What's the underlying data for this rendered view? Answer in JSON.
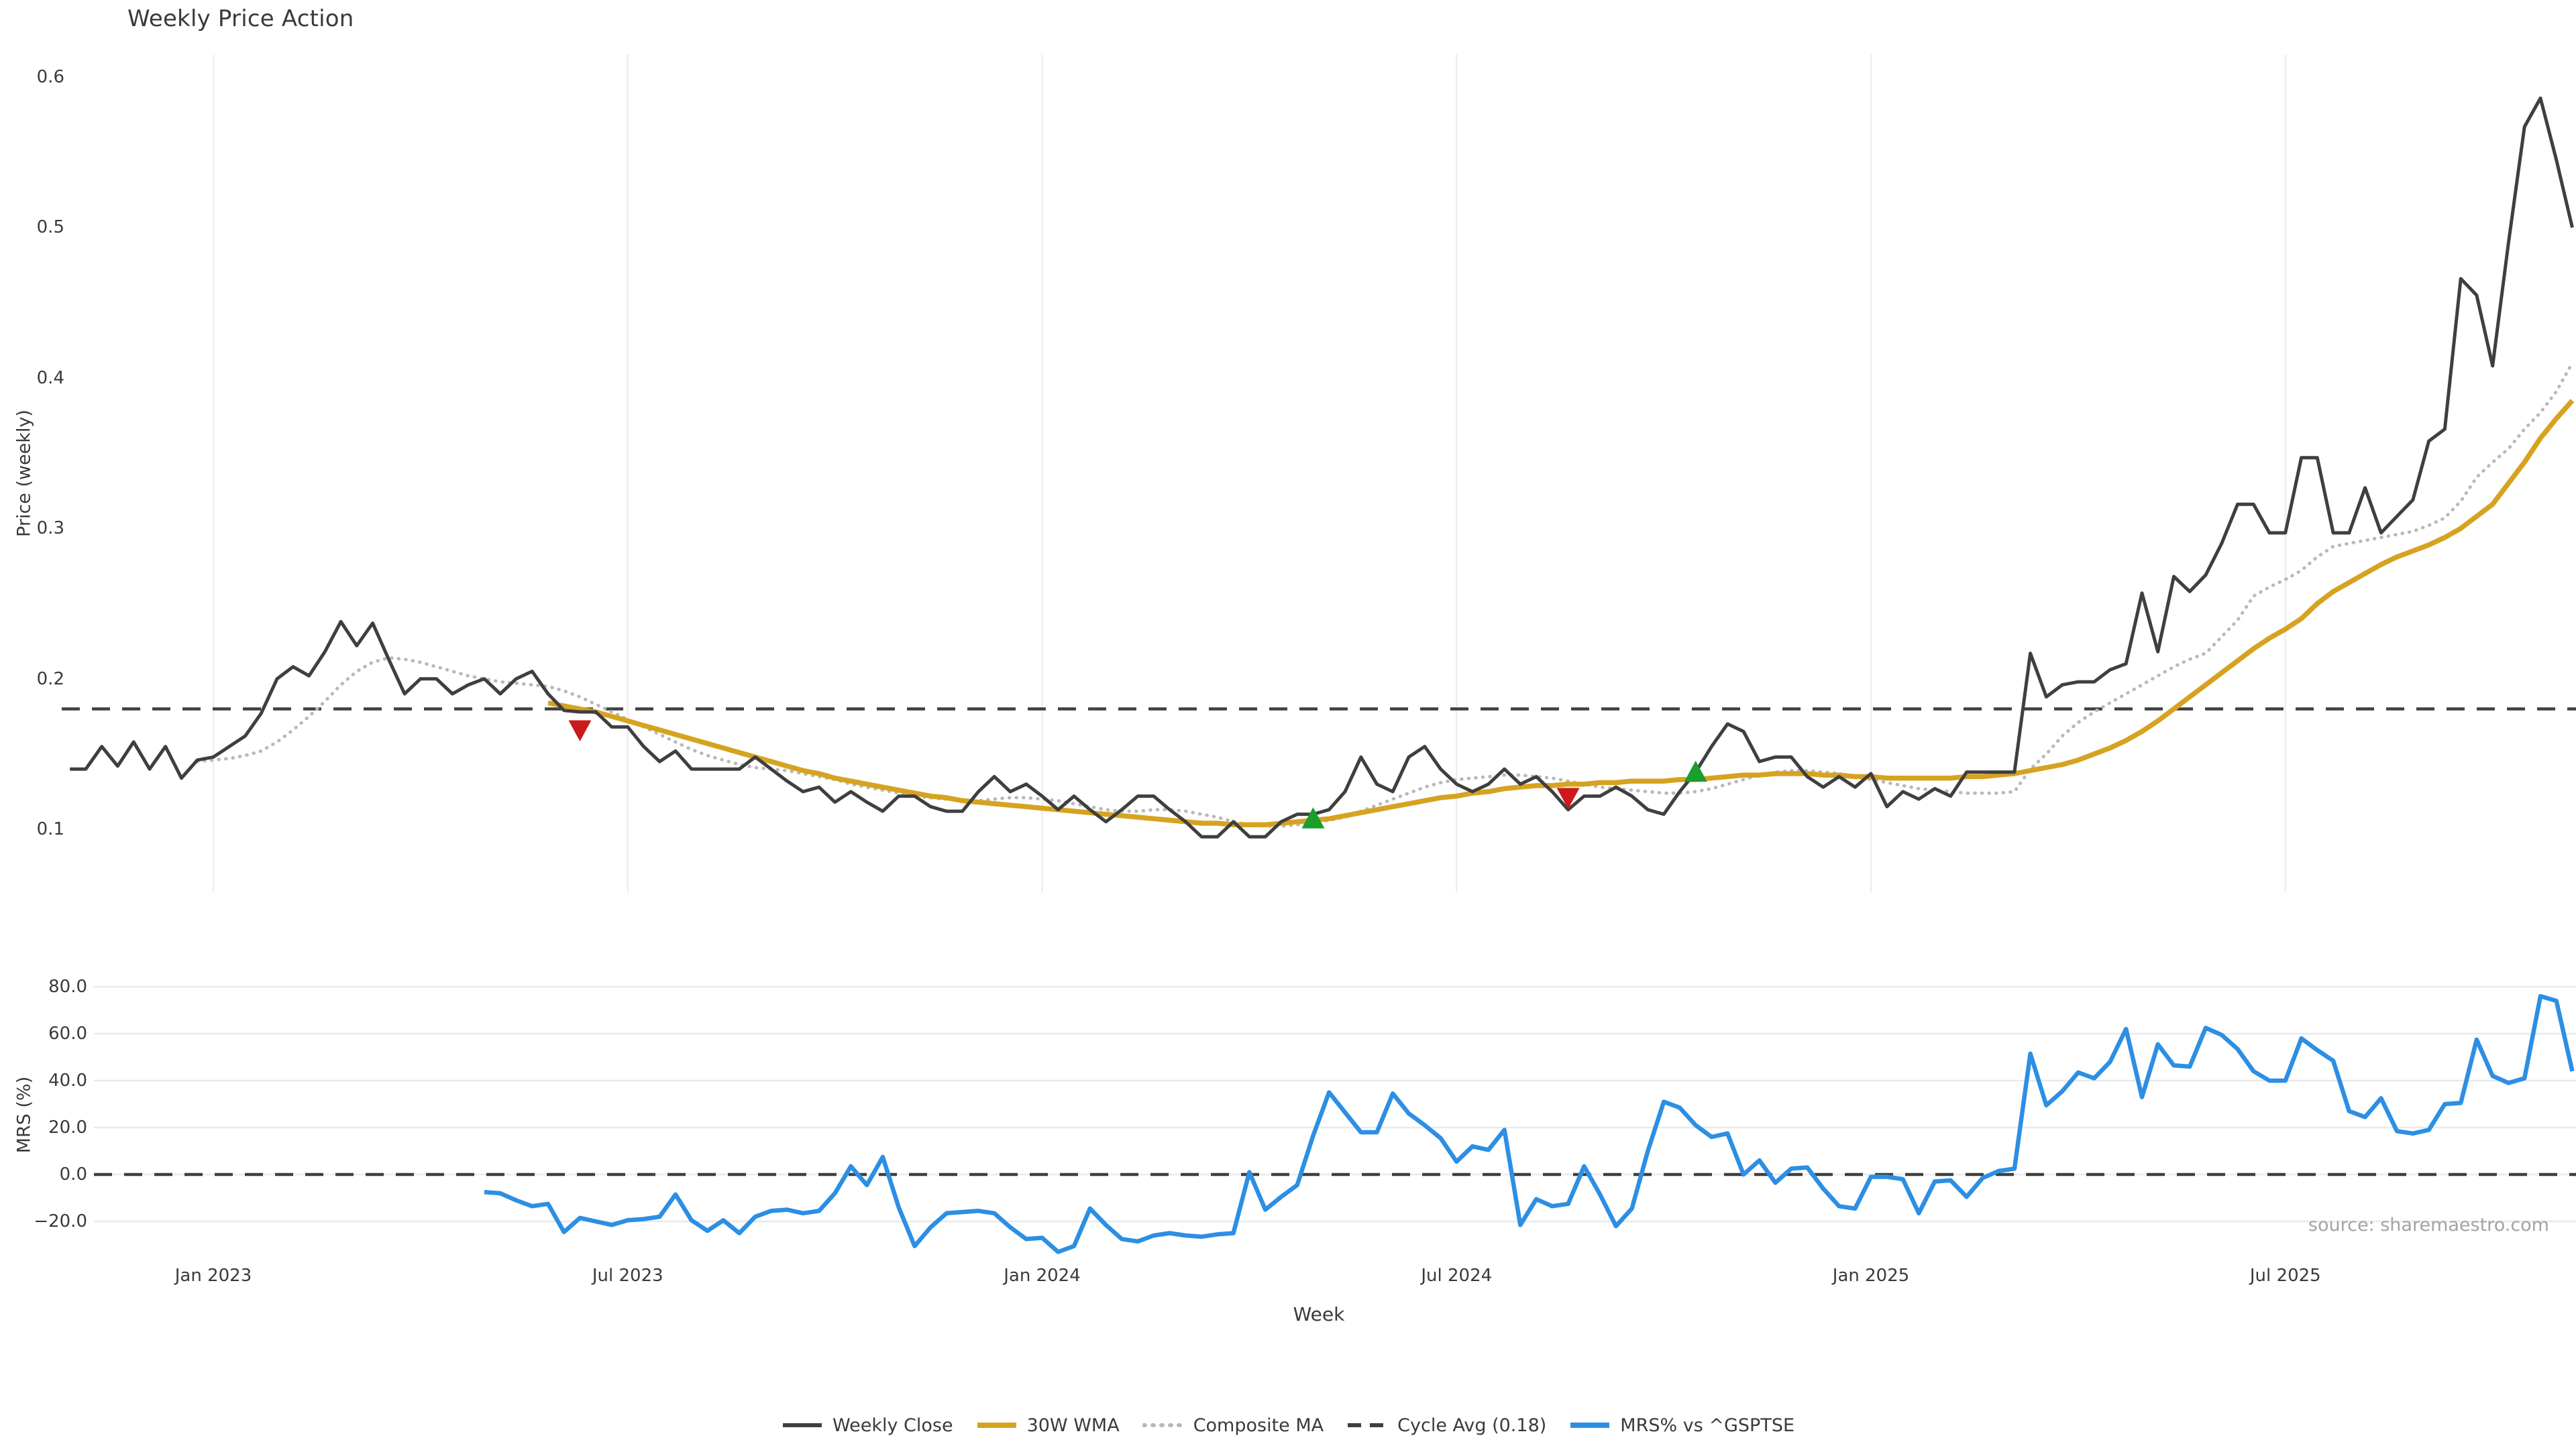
{
  "title": "Weekly Price Action",
  "x_axis": {
    "label": "Week",
    "tick_labels": [
      "Jan 2023",
      "Jul 2023",
      "Jan 2024",
      "Jul 2024",
      "Jan 2025",
      "Jul 2025"
    ],
    "tick_weeks": [
      9,
      35,
      61,
      87,
      113,
      139
    ]
  },
  "price_panel": {
    "y_label": "Price (weekly)",
    "y_tick_labels": [
      "0.1",
      "0.2",
      "0.3",
      "0.4",
      "0.5",
      "0.6"
    ],
    "y_tick_values": [
      0.1,
      0.2,
      0.3,
      0.4,
      0.5,
      0.6
    ]
  },
  "mrs_panel": {
    "y_label": "MRS (%)",
    "y_tick_labels": [
      "80.0",
      "60.0",
      "40.0",
      "20.0",
      "0.0",
      "−20.0"
    ],
    "y_tick_values": [
      80,
      60,
      40,
      20,
      0,
      -20
    ],
    "source": "source: sharemaestro.com"
  },
  "legend": {
    "items": [
      {
        "label": "Weekly Close",
        "color": "#3f3f3f",
        "style": "solid"
      },
      {
        "label": "30W WMA",
        "color": "#d6a321",
        "style": "solid-thick"
      },
      {
        "label": "Composite MA",
        "color": "#b9b9b9",
        "style": "dotted"
      },
      {
        "label": "Cycle Avg (0.18)",
        "color": "#3f3f3f",
        "style": "dashed"
      },
      {
        "label": "MRS% vs ^GSPTSE",
        "color": "#2c8fe3",
        "style": "solid-thick"
      }
    ]
  },
  "colors": {
    "close": "#3f3f3f",
    "wma": "#d6a321",
    "composite": "#b9b9b9",
    "cycle_avg": "#3f3f3f",
    "mrs": "#2c8fe3",
    "buy_marker": "#1a9e2c",
    "sell_marker": "#cc1a1a",
    "grid": "#ededf2",
    "mrs_grid": "#e9e9ef",
    "text": "#3a3a3a",
    "muted": "#a3a3a3"
  },
  "chart_data": [
    {
      "type": "line",
      "title": "Weekly Price Action",
      "xlabel": "Week",
      "ylabel": "Price (weekly)",
      "x_unit": "week_index_from_nov_2022",
      "tick_weeks": [
        9,
        35,
        61,
        87,
        113,
        139
      ],
      "tick_labels": [
        "Jan 2023",
        "Jul 2023",
        "Jan 2024",
        "Jul 2024",
        "Jan 2025",
        "Jul 2025"
      ],
      "ylim": [
        0.058,
        0.615
      ],
      "y_ticks": [
        0.1,
        0.2,
        0.3,
        0.4,
        0.5,
        0.6
      ],
      "grid": "vertical-only",
      "cycle_avg": 0.18,
      "series": [
        {
          "name": "Weekly Close",
          "start_week": 0,
          "values": [
            0.14,
            0.14,
            0.155,
            0.142,
            0.158,
            0.14,
            0.155,
            0.134,
            0.146,
            0.148,
            0.155,
            0.162,
            0.177,
            0.2,
            0.208,
            0.202,
            0.218,
            0.238,
            0.222,
            0.237,
            0.213,
            0.19,
            0.2,
            0.2,
            0.19,
            0.196,
            0.2,
            0.19,
            0.2,
            0.205,
            0.19,
            0.179,
            0.178,
            0.178,
            0.168,
            0.168,
            0.155,
            0.145,
            0.152,
            0.14,
            0.14,
            0.14,
            0.14,
            0.148,
            0.14,
            0.132,
            0.125,
            0.128,
            0.118,
            0.125,
            0.118,
            0.112,
            0.122,
            0.122,
            0.115,
            0.112,
            0.112,
            0.125,
            0.135,
            0.125,
            0.13,
            0.122,
            0.113,
            0.122,
            0.113,
            0.105,
            0.113,
            0.122,
            0.122,
            0.113,
            0.105,
            0.095,
            0.095,
            0.105,
            0.095,
            0.095,
            0.105,
            0.11,
            0.11,
            0.113,
            0.125,
            0.148,
            0.13,
            0.125,
            0.148,
            0.155,
            0.14,
            0.13,
            0.125,
            0.13,
            0.14,
            0.13,
            0.135,
            0.125,
            0.113,
            0.122,
            0.122,
            0.128,
            0.122,
            0.113,
            0.11,
            0.125,
            0.138,
            0.155,
            0.17,
            0.165,
            0.145,
            0.148,
            0.148,
            0.135,
            0.128,
            0.135,
            0.128,
            0.137,
            0.115,
            0.125,
            0.12,
            0.127,
            0.122,
            0.138,
            0.138,
            0.138,
            0.138,
            0.217,
            0.188,
            0.196,
            0.198,
            0.198,
            0.206,
            0.21,
            0.257,
            0.218,
            0.268,
            0.258,
            0.269,
            0.29,
            0.316,
            0.316,
            0.297,
            0.297,
            0.347,
            0.347,
            0.297,
            0.297,
            0.327,
            0.297,
            0.308,
            0.319,
            0.358,
            0.366,
            0.466,
            0.455,
            0.408,
            0.49,
            0.567,
            0.586,
            0.545,
            0.5
          ]
        },
        {
          "name": "30W WMA",
          "start_week": 30,
          "values": [
            0.184,
            0.182,
            0.18,
            0.178,
            0.175,
            0.172,
            0.169,
            0.166,
            0.163,
            0.16,
            0.157,
            0.154,
            0.151,
            0.148,
            0.145,
            0.142,
            0.139,
            0.137,
            0.134,
            0.132,
            0.13,
            0.128,
            0.126,
            0.124,
            0.122,
            0.121,
            0.119,
            0.118,
            0.117,
            0.116,
            0.115,
            0.114,
            0.113,
            0.112,
            0.111,
            0.11,
            0.109,
            0.108,
            0.107,
            0.106,
            0.105,
            0.104,
            0.104,
            0.103,
            0.103,
            0.103,
            0.104,
            0.105,
            0.106,
            0.107,
            0.109,
            0.111,
            0.113,
            0.115,
            0.117,
            0.119,
            0.121,
            0.122,
            0.124,
            0.125,
            0.127,
            0.128,
            0.129,
            0.129,
            0.13,
            0.13,
            0.131,
            0.131,
            0.132,
            0.132,
            0.132,
            0.133,
            0.133,
            0.134,
            0.135,
            0.136,
            0.136,
            0.137,
            0.137,
            0.137,
            0.136,
            0.136,
            0.135,
            0.135,
            0.134,
            0.134,
            0.134,
            0.134,
            0.134,
            0.135,
            0.135,
            0.136,
            0.137,
            0.139,
            0.141,
            0.143,
            0.146,
            0.15,
            0.154,
            0.159,
            0.165,
            0.172,
            0.18,
            0.188,
            0.196,
            0.204,
            0.212,
            0.22,
            0.227,
            0.233,
            0.24,
            0.25,
            0.258,
            0.264,
            0.27,
            0.276,
            0.281,
            0.285,
            0.289,
            0.294,
            0.3,
            0.308,
            0.316,
            0.33,
            0.344,
            0.36,
            0.373,
            0.385
          ]
        },
        {
          "name": "Composite MA",
          "start_week": 8,
          "values": [
            0.145,
            0.146,
            0.147,
            0.149,
            0.152,
            0.158,
            0.166,
            0.175,
            0.185,
            0.196,
            0.205,
            0.211,
            0.214,
            0.213,
            0.211,
            0.208,
            0.205,
            0.202,
            0.2,
            0.198,
            0.197,
            0.196,
            0.195,
            0.192,
            0.188,
            0.183,
            0.178,
            0.173,
            0.168,
            0.163,
            0.158,
            0.153,
            0.149,
            0.146,
            0.143,
            0.141,
            0.14,
            0.139,
            0.137,
            0.135,
            0.133,
            0.13,
            0.128,
            0.126,
            0.124,
            0.122,
            0.121,
            0.12,
            0.119,
            0.119,
            0.12,
            0.121,
            0.121,
            0.12,
            0.119,
            0.117,
            0.115,
            0.113,
            0.112,
            0.112,
            0.113,
            0.113,
            0.112,
            0.11,
            0.108,
            0.105,
            0.103,
            0.102,
            0.102,
            0.103,
            0.104,
            0.106,
            0.108,
            0.112,
            0.116,
            0.12,
            0.124,
            0.128,
            0.131,
            0.133,
            0.134,
            0.135,
            0.136,
            0.136,
            0.135,
            0.134,
            0.132,
            0.13,
            0.128,
            0.127,
            0.126,
            0.125,
            0.124,
            0.124,
            0.125,
            0.127,
            0.13,
            0.133,
            0.136,
            0.138,
            0.139,
            0.139,
            0.138,
            0.137,
            0.135,
            0.133,
            0.131,
            0.129,
            0.127,
            0.126,
            0.125,
            0.124,
            0.124,
            0.124,
            0.125,
            0.14,
            0.15,
            0.162,
            0.171,
            0.178,
            0.184,
            0.19,
            0.196,
            0.202,
            0.208,
            0.213,
            0.217,
            0.228,
            0.239,
            0.255,
            0.261,
            0.266,
            0.272,
            0.281,
            0.288,
            0.29,
            0.292,
            0.294,
            0.296,
            0.298,
            0.302,
            0.307,
            0.318,
            0.334,
            0.344,
            0.353,
            0.366,
            0.377,
            0.391,
            0.41
          ]
        }
      ],
      "markers": {
        "sell": [
          {
            "week": 32,
            "price": 0.166
          },
          {
            "week": 94,
            "price": 0.121
          }
        ],
        "buy": [
          {
            "week": 78,
            "price": 0.107
          },
          {
            "week": 102,
            "price": 0.138
          }
        ]
      }
    },
    {
      "type": "line",
      "ylabel": "MRS (%)",
      "ylim": [
        -37,
        88
      ],
      "y_ticks": [
        -20,
        0,
        20,
        40,
        60,
        80
      ],
      "grid": "horizontal-only",
      "zero_line": 0,
      "series": [
        {
          "name": "MRS% vs ^GSPTSE",
          "start_week": 26,
          "values": [
            -7.5,
            -8,
            -11,
            -13.5,
            -12.5,
            -24.5,
            -18.5,
            -20,
            -21.5,
            -19.5,
            -19,
            -18,
            -8.5,
            -19.5,
            -24,
            -19.5,
            -25,
            -18,
            -15.5,
            -15,
            -16.5,
            -15.5,
            -8,
            3.5,
            -4.5,
            7.5,
            -14,
            -30.5,
            -22.5,
            -16.5,
            -16,
            -15.5,
            -16.5,
            -22.5,
            -27.5,
            -27,
            -33,
            -30.5,
            -14.5,
            -21.5,
            -27.5,
            -28.5,
            -26,
            -25,
            -26,
            -26.5,
            -25.5,
            -25,
            1,
            -15,
            -9.5,
            -4.5,
            16.5,
            35,
            26.5,
            18,
            18,
            34.5,
            26,
            21,
            15.5,
            5.5,
            12,
            10.5,
            19,
            -21.5,
            -10.5,
            -13.5,
            -12.5,
            3.5,
            -8.5,
            -22,
            -14.5,
            10,
            31,
            28.5,
            21,
            16,
            17.5,
            0,
            6,
            -3.5,
            2.5,
            3,
            -6,
            -13.5,
            -14.5,
            -1,
            -1,
            -2,
            -16.5,
            -3,
            -2.5,
            -9.5,
            -1.5,
            1.5,
            2.5,
            51.5,
            29.5,
            35.5,
            43.5,
            41,
            48,
            62,
            33,
            55.5,
            46.5,
            46,
            62.5,
            59.5,
            53.5,
            44,
            40,
            40,
            58,
            53,
            48.5,
            27,
            24.5,
            32.5,
            18.5,
            17.5,
            19,
            30,
            30.5,
            57.5,
            42,
            39,
            41,
            76,
            74,
            44
          ]
        }
      ]
    }
  ]
}
